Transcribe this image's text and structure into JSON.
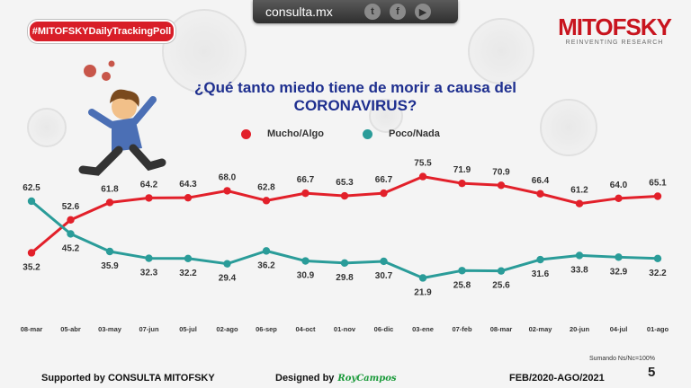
{
  "header": {
    "site": "consulta.mx",
    "hashtag": "#MITOFSKYDailyTrackingPoll",
    "brand_name": "MITOFSKY",
    "brand_tagline": "REINVENTING RESEARCH",
    "social_icons": [
      "twitter-icon",
      "facebook-icon",
      "youtube-icon"
    ]
  },
  "footer": {
    "supported": "Supported by  CONSULTA  MITOFSKY",
    "designed": "Designed by",
    "designer": "RoyCampos",
    "period": "FEB/2020-AGO/2021",
    "note": "Sumando Ns/Nc=100%",
    "page": "5"
  },
  "colors": {
    "red": "#e2202a",
    "teal": "#2a9c99",
    "title": "#1e2f8f"
  },
  "chart_data": {
    "type": "line",
    "title": "¿Qué tanto miedo tiene de morir a causa del CORONAVIRUS?",
    "categories": [
      "08-mar",
      "05-abr",
      "03-may",
      "07-jun",
      "05-jul",
      "02-ago",
      "06-sep",
      "04-oct",
      "01-nov",
      "06-dic",
      "03-ene",
      "07-feb",
      "08-mar",
      "02-may",
      "20-jun",
      "04-jul",
      "01-ago"
    ],
    "ylim": [
      0,
      100
    ],
    "legend_position": "top",
    "series": [
      {
        "name": "Mucho/Algo",
        "color": "#e2202a",
        "values": [
          35.2,
          52.6,
          61.8,
          64.2,
          64.3,
          68.0,
          62.8,
          66.7,
          65.3,
          66.7,
          75.5,
          71.9,
          70.9,
          66.4,
          61.2,
          64.0,
          65.1
        ]
      },
      {
        "name": "Poco/Nada",
        "color": "#2a9c99",
        "values": [
          62.5,
          45.2,
          35.9,
          32.3,
          32.2,
          29.4,
          36.2,
          30.9,
          29.8,
          30.7,
          21.9,
          25.8,
          25.6,
          31.6,
          33.8,
          32.9,
          32.2
        ]
      }
    ],
    "labels": {
      "red": [
        "35.2",
        "52.6",
        "61.8",
        "64.2",
        "64.3",
        "68.0",
        "62.8",
        "66.7",
        "65.3",
        "66.7",
        "75.5",
        "71.9",
        "70.9",
        "66.4",
        "61.2",
        "64.0",
        "65.1"
      ],
      "teal": [
        "62.5",
        "45.2",
        "35.9",
        "32.3",
        "32.2",
        "29.4",
        "36.2",
        "30.9",
        "29.8",
        "30.7",
        "21.9",
        "25.8",
        "25.6",
        "31.6",
        "33.8",
        "32.9",
        "32.2"
      ]
    }
  }
}
